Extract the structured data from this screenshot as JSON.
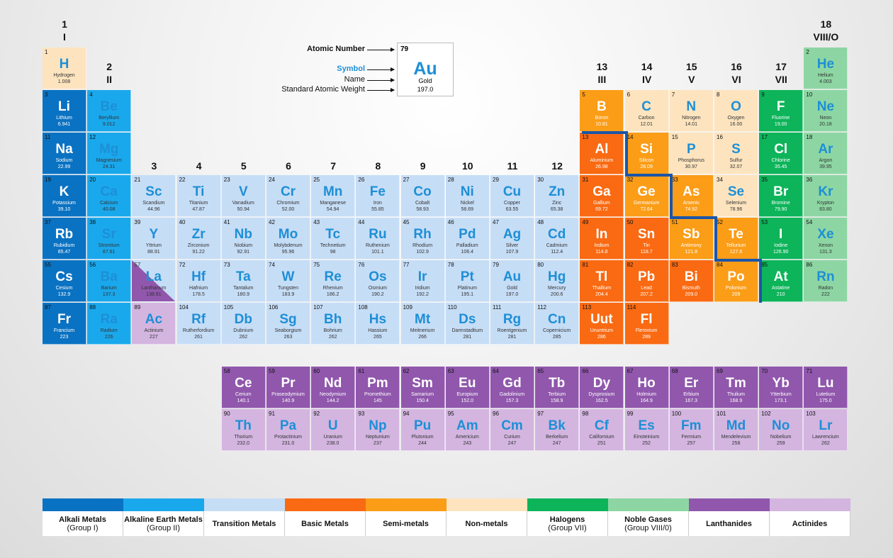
{
  "colors": {
    "alkali": "#0a72c2",
    "alkaline": "#1aa8ec",
    "transition": "#c6ddf6",
    "basic": "#f96a12",
    "semi": "#fb9d17",
    "nonmetal": "#fde4bf",
    "halogen": "#0db45a",
    "noble": "#8dd6a3",
    "lanthanide": "#9057ac",
    "actinide": "#d3b5e0",
    "boundary": "#1b55a8"
  },
  "groups": [
    {
      "n": "1",
      "r": "I"
    },
    {
      "n": "2",
      "r": "II"
    },
    {
      "n": "3",
      "r": ""
    },
    {
      "n": "4",
      "r": ""
    },
    {
      "n": "5",
      "r": ""
    },
    {
      "n": "6",
      "r": ""
    },
    {
      "n": "7",
      "r": ""
    },
    {
      "n": "8",
      "r": ""
    },
    {
      "n": "9",
      "r": ""
    },
    {
      "n": "10",
      "r": ""
    },
    {
      "n": "11",
      "r": ""
    },
    {
      "n": "12",
      "r": ""
    },
    {
      "n": "13",
      "r": "III"
    },
    {
      "n": "14",
      "r": "IV"
    },
    {
      "n": "15",
      "r": "V"
    },
    {
      "n": "16",
      "r": "VI"
    },
    {
      "n": "17",
      "r": "VII"
    },
    {
      "n": "18",
      "r": "VIII/O"
    }
  ],
  "key": {
    "labels": [
      "Atomic Number",
      "Symbol",
      "Name",
      "Standard Atomic Weight"
    ],
    "number": "79",
    "symbol": "Au",
    "name": "Gold",
    "weight": "197.0"
  },
  "elements": [
    [
      "1",
      "H",
      "Hydrogen",
      "1.008",
      "nonmetal"
    ],
    [
      "2",
      "He",
      "Helium",
      "4.003",
      "noble"
    ],
    [
      "3",
      "Li",
      "Lithium",
      "6.941",
      "alkali"
    ],
    [
      "4",
      "Be",
      "Beryllium",
      "9.012",
      "alkaline"
    ],
    [
      "5",
      "B",
      "Boron",
      "10.81",
      "semi"
    ],
    [
      "6",
      "C",
      "Carbon",
      "12.01",
      "nonmetal"
    ],
    [
      "7",
      "N",
      "Nitrogen",
      "14.01",
      "nonmetal"
    ],
    [
      "8",
      "O",
      "Oxygen",
      "16.00",
      "nonmetal"
    ],
    [
      "9",
      "F",
      "Fluorine",
      "19.00",
      "halogen"
    ],
    [
      "10",
      "Ne",
      "Neon",
      "20.18",
      "noble"
    ],
    [
      "11",
      "Na",
      "Sodium",
      "22.99",
      "alkali"
    ],
    [
      "12",
      "Mg",
      "Magnesium",
      "24.31",
      "alkaline"
    ],
    [
      "13",
      "Al",
      "Aluminium",
      "26.98",
      "basic"
    ],
    [
      "14",
      "Si",
      "Silicon",
      "28.09",
      "semi"
    ],
    [
      "15",
      "P",
      "Phosphorus",
      "30.97",
      "nonmetal"
    ],
    [
      "16",
      "S",
      "Sulfur",
      "32.07",
      "nonmetal"
    ],
    [
      "17",
      "Cl",
      "Chlorine",
      "35.45",
      "halogen"
    ],
    [
      "18",
      "Ar",
      "Argon",
      "39.95",
      "noble"
    ],
    [
      "19",
      "K",
      "Potassium",
      "39.10",
      "alkali"
    ],
    [
      "20",
      "Ca",
      "Calcium",
      "40.08",
      "alkaline"
    ],
    [
      "21",
      "Sc",
      "Scandium",
      "44.96",
      "transition"
    ],
    [
      "22",
      "Ti",
      "Titanium",
      "47.87",
      "transition"
    ],
    [
      "23",
      "V",
      "Vanadium",
      "50.94",
      "transition"
    ],
    [
      "24",
      "Cr",
      "Chromium",
      "52.00",
      "transition"
    ],
    [
      "25",
      "Mn",
      "Manganese",
      "54.94",
      "transition"
    ],
    [
      "26",
      "Fe",
      "Iron",
      "55.85",
      "transition"
    ],
    [
      "27",
      "Co",
      "Cobalt",
      "58.93",
      "transition"
    ],
    [
      "28",
      "Ni",
      "Nickel",
      "58.69",
      "transition"
    ],
    [
      "29",
      "Cu",
      "Copper",
      "63.55",
      "transition"
    ],
    [
      "30",
      "Zn",
      "Zinc",
      "65.38",
      "transition"
    ],
    [
      "31",
      "Ga",
      "Gallium",
      "69.72",
      "basic"
    ],
    [
      "32",
      "Ge",
      "Germanium",
      "72.64",
      "semi"
    ],
    [
      "33",
      "As",
      "Arsenic",
      "74.92",
      "semi"
    ],
    [
      "34",
      "Se",
      "Selenium",
      "78.96",
      "nonmetal"
    ],
    [
      "35",
      "Br",
      "Bromine",
      "79.90",
      "halogen"
    ],
    [
      "36",
      "Kr",
      "Krypton",
      "83.80",
      "noble"
    ],
    [
      "37",
      "Rb",
      "Rubidium",
      "85.47",
      "alkali"
    ],
    [
      "38",
      "Sr",
      "Strontium",
      "87.61",
      "alkaline"
    ],
    [
      "39",
      "Y",
      "Yttrium",
      "88.91",
      "transition"
    ],
    [
      "40",
      "Zr",
      "Zirconium",
      "91.22",
      "transition"
    ],
    [
      "41",
      "Nb",
      "Niobium",
      "92.91",
      "transition"
    ],
    [
      "42",
      "Mo",
      "Molybdenum",
      "95.96",
      "transition"
    ],
    [
      "43",
      "Tc",
      "Technetium",
      "98",
      "transition"
    ],
    [
      "44",
      "Ru",
      "Ruthenium",
      "101.1",
      "transition"
    ],
    [
      "45",
      "Rh",
      "Rhodium",
      "102.9",
      "transition"
    ],
    [
      "46",
      "Pd",
      "Palladium",
      "106.4",
      "transition"
    ],
    [
      "47",
      "Ag",
      "Silver",
      "107.9",
      "transition"
    ],
    [
      "48",
      "Cd",
      "Cadmium",
      "112.4",
      "transition"
    ],
    [
      "49",
      "In",
      "Indium",
      "114.8",
      "basic"
    ],
    [
      "50",
      "Sn",
      "Tin",
      "118.7",
      "basic"
    ],
    [
      "51",
      "Sb",
      "Antimony",
      "121.8",
      "semi"
    ],
    [
      "52",
      "Te",
      "Tellurium",
      "127.6",
      "semi"
    ],
    [
      "53",
      "I",
      "Iodine",
      "126.90",
      "halogen"
    ],
    [
      "54",
      "Xe",
      "Xenon",
      "131.3",
      "noble"
    ],
    [
      "55",
      "Cs",
      "Cesium",
      "132.9",
      "alkali"
    ],
    [
      "56",
      "Ba",
      "Barium",
      "137.3",
      "alkaline"
    ],
    [
      "57",
      "La",
      "Lanthanum",
      "138.91",
      "lanthanum"
    ],
    [
      "72",
      "Hf",
      "Hafnium",
      "178.5",
      "transition"
    ],
    [
      "73",
      "Ta",
      "Tantalum",
      "180.9",
      "transition"
    ],
    [
      "74",
      "W",
      "Tungsten",
      "183.9",
      "transition"
    ],
    [
      "75",
      "Re",
      "Rhenium",
      "186.2",
      "transition"
    ],
    [
      "76",
      "Os",
      "Osmium",
      "190.2",
      "transition"
    ],
    [
      "77",
      "Ir",
      "Iridium",
      "192.2",
      "transition"
    ],
    [
      "78",
      "Pt",
      "Platinum",
      "195.1",
      "transition"
    ],
    [
      "79",
      "Au",
      "Gold",
      "197.0",
      "transition"
    ],
    [
      "80",
      "Hg",
      "Mercury",
      "200.6",
      "transition"
    ],
    [
      "81",
      "Tl",
      "Thallium",
      "204.4",
      "basic"
    ],
    [
      "82",
      "Pb",
      "Lead",
      "207.2",
      "basic"
    ],
    [
      "83",
      "Bi",
      "Bismuth",
      "209.0",
      "basic"
    ],
    [
      "84",
      "Po",
      "Polonium",
      "209",
      "semi"
    ],
    [
      "85",
      "At",
      "Astatine",
      "210",
      "halogen"
    ],
    [
      "86",
      "Rn",
      "Radon",
      "222",
      "noble"
    ],
    [
      "87",
      "Fr",
      "Francium",
      "223",
      "alkali"
    ],
    [
      "88",
      "Ra",
      "Radium",
      "226",
      "alkaline"
    ],
    [
      "89",
      "Ac",
      "Actinium",
      "227",
      "actinide"
    ],
    [
      "104",
      "Rf",
      "Rutherfordium",
      "261",
      "transition"
    ],
    [
      "105",
      "Db",
      "Dubnium",
      "262",
      "transition"
    ],
    [
      "106",
      "Sg",
      "Seaborgium",
      "263",
      "transition"
    ],
    [
      "107",
      "Bh",
      "Bohrium",
      "262",
      "transition"
    ],
    [
      "108",
      "Hs",
      "Hassium",
      "265",
      "transition"
    ],
    [
      "109",
      "Mt",
      "Meitnerium",
      "266",
      "transition"
    ],
    [
      "110",
      "Ds",
      "Darmstadtium",
      "281",
      "transition"
    ],
    [
      "111",
      "Rg",
      "Roentgenium",
      "281",
      "transition"
    ],
    [
      "112",
      "Cn",
      "Copernicium",
      "285",
      "transition"
    ],
    [
      "113",
      "Uut",
      "Ununtrium",
      "286",
      "basic"
    ],
    [
      "114",
      "Fl",
      "Flerovium",
      "289",
      "basic"
    ],
    [
      "58",
      "Ce",
      "Cerium",
      "140.1",
      "lanthanide"
    ],
    [
      "59",
      "Pr",
      "Praseodymium",
      "140.9",
      "lanthanide"
    ],
    [
      "60",
      "Nd",
      "Neodymium",
      "144.2",
      "lanthanide"
    ],
    [
      "61",
      "Pm",
      "Promethium",
      "145",
      "lanthanide"
    ],
    [
      "62",
      "Sm",
      "Samarium",
      "150.4",
      "lanthanide"
    ],
    [
      "63",
      "Eu",
      "Europium",
      "152.0",
      "lanthanide"
    ],
    [
      "64",
      "Gd",
      "Gadolinium",
      "157.3",
      "lanthanide"
    ],
    [
      "65",
      "Tb",
      "Terbium",
      "158.9",
      "lanthanide"
    ],
    [
      "66",
      "Dy",
      "Dysprosium",
      "162.5",
      "lanthanide"
    ],
    [
      "67",
      "Ho",
      "Holmium",
      "164.9",
      "lanthanide"
    ],
    [
      "68",
      "Er",
      "Erbium",
      "167.3",
      "lanthanide"
    ],
    [
      "69",
      "Tm",
      "Thulium",
      "168.9",
      "lanthanide"
    ],
    [
      "70",
      "Yb",
      "Ytterbium",
      "173.1",
      "lanthanide"
    ],
    [
      "71",
      "Lu",
      "Lutetium",
      "175.0",
      "lanthanide"
    ],
    [
      "90",
      "Th",
      "Thorium",
      "232.0",
      "actinide"
    ],
    [
      "91",
      "Pa",
      "Protactinium",
      "231.0",
      "actinide"
    ],
    [
      "92",
      "U",
      "Uranium",
      "238.0",
      "actinide"
    ],
    [
      "93",
      "Np",
      "Neptunium",
      "237",
      "actinide"
    ],
    [
      "94",
      "Pu",
      "Plutonium",
      "244",
      "actinide"
    ],
    [
      "95",
      "Am",
      "Americium",
      "243",
      "actinide"
    ],
    [
      "96",
      "Cm",
      "Curium",
      "247",
      "actinide"
    ],
    [
      "97",
      "Bk",
      "Berkelium",
      "247",
      "actinide"
    ],
    [
      "98",
      "Cf",
      "Californium",
      "251",
      "actinide"
    ],
    [
      "99",
      "Es",
      "Einsteinium",
      "252",
      "actinide"
    ],
    [
      "100",
      "Fm",
      "Fermium",
      "257",
      "actinide"
    ],
    [
      "101",
      "Md",
      "Mendelevium",
      "258",
      "actinide"
    ],
    [
      "102",
      "No",
      "Nobelium",
      "259",
      "actinide"
    ],
    [
      "103",
      "Lr",
      "Lawrencium",
      "262",
      "actinide"
    ]
  ],
  "legend": [
    {
      "cat": "alkali",
      "line1": "Alkali Metals",
      "line2": "(Group I)"
    },
    {
      "cat": "alkaline",
      "line1": "Alkaline Earth Metals",
      "line2": "(Group II)"
    },
    {
      "cat": "transition",
      "line1": "Transition Metals",
      "line2": ""
    },
    {
      "cat": "basic",
      "line1": "Basic Metals",
      "line2": ""
    },
    {
      "cat": "semi",
      "line1": "Semi-metals",
      "line2": ""
    },
    {
      "cat": "nonmetal",
      "line1": "Non-metals",
      "line2": ""
    },
    {
      "cat": "halogen",
      "line1": "Halogens",
      "line2": "(Group VII)"
    },
    {
      "cat": "noble",
      "line1": "Noble Gases",
      "line2": "(Group VIII/0)"
    },
    {
      "cat": "lanthanide",
      "line1": "Lanthanides",
      "line2": ""
    },
    {
      "cat": "actinide",
      "line1": "Actinides",
      "line2": ""
    }
  ]
}
